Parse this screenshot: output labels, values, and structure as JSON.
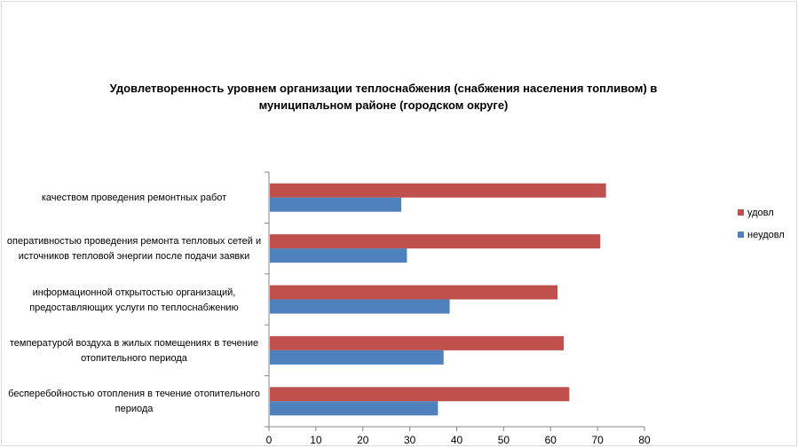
{
  "chart_data": {
    "type": "bar",
    "orientation": "horizontal",
    "title": "Удовлетворенность уровнем организации теплоснабжения (снабжения населения топливом) в муниципальном районе (городском округе)",
    "categories": [
      "качеством проведения ремонтных работ",
      "оперативностью проведения ремонта тепловых сетей и источников тепловой энергии после подачи заявки",
      "информационной открытостью организаций, предоставляющих услуги по теплоснабжению",
      "температурой воздуха в жилых помещениях в течение отопительного периода",
      "бесперебойностью отопления в течение отопительного периода"
    ],
    "series": [
      {
        "name": "удовл",
        "color": "#c0504d",
        "values": [
          71.8,
          70.6,
          61.5,
          62.8,
          64.0
        ]
      },
      {
        "name": "неудовл",
        "color": "#4f81bd",
        "values": [
          28.2,
          29.4,
          38.5,
          37.2,
          36.0
        ]
      }
    ],
    "xlim": [
      0,
      80
    ],
    "ticks": [
      "0",
      "10",
      "20",
      "30",
      "40",
      "50",
      "60",
      "70",
      "80"
    ],
    "grid": false,
    "legend": "right"
  }
}
